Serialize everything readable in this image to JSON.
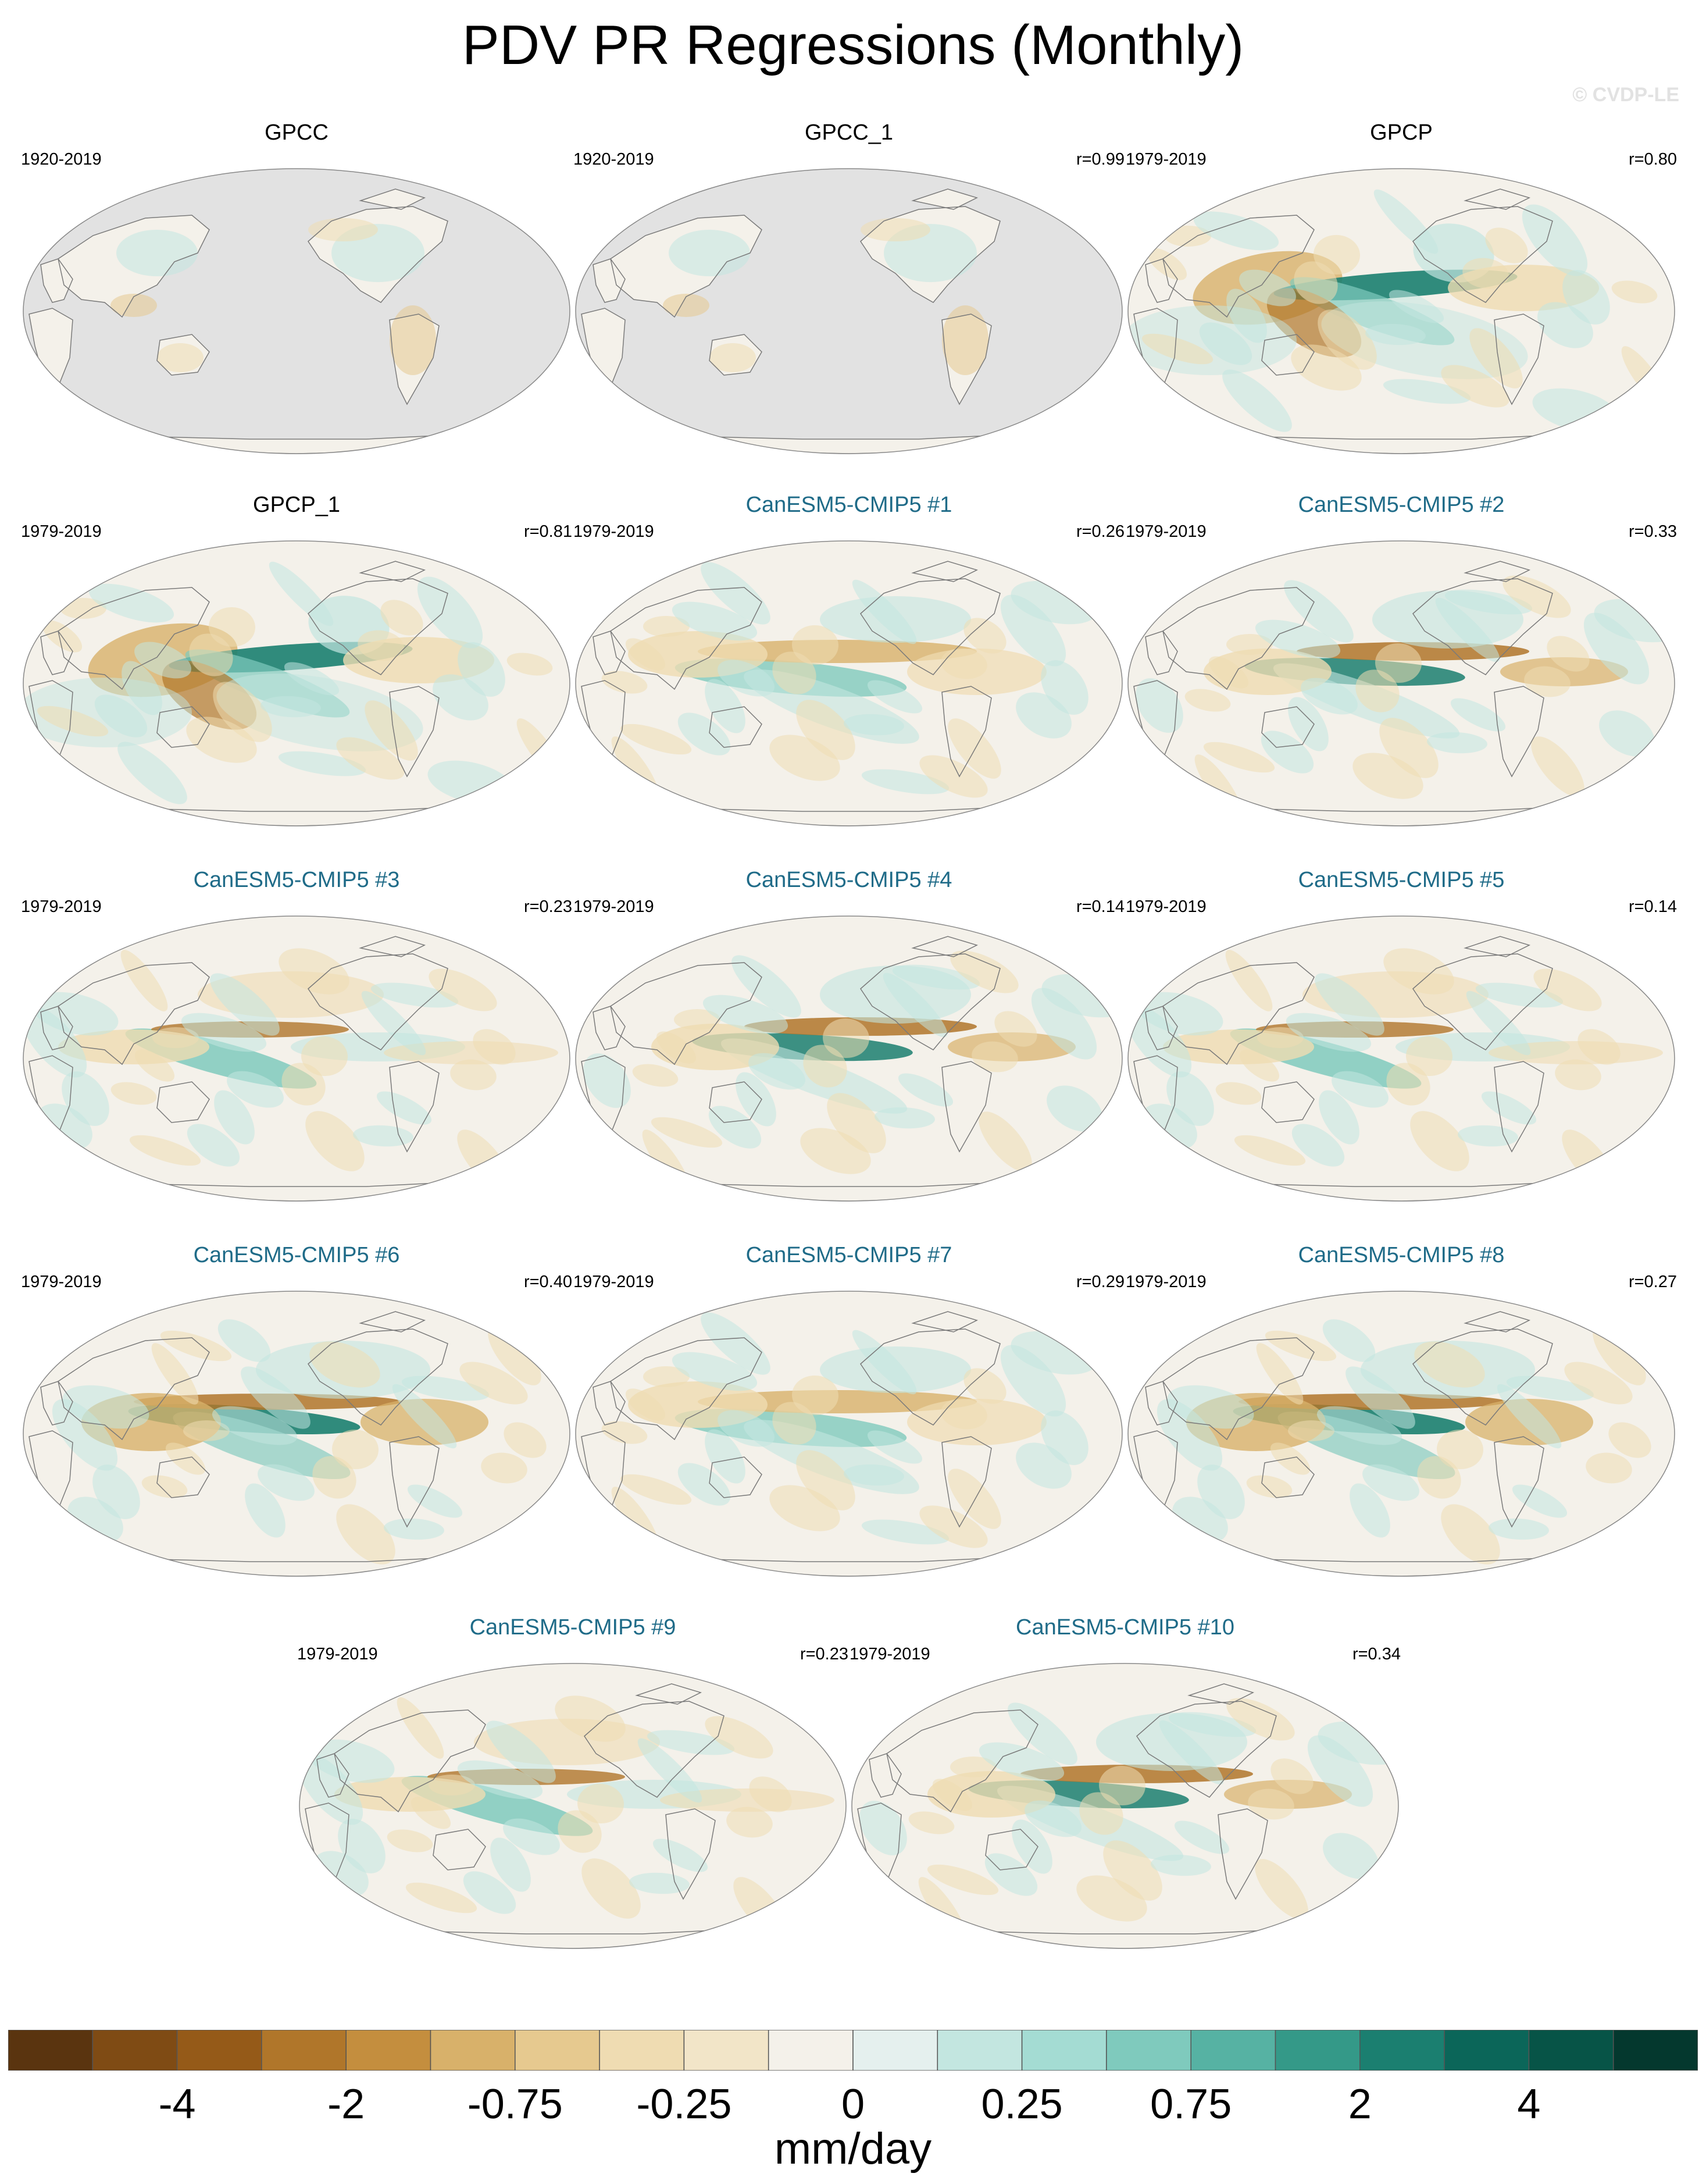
{
  "title": "PDV PR Regressions (Monthly)",
  "credit": "© CVDP-LE",
  "colors": {
    "ocean_base": "#f4f1ea",
    "land_nodata": "#e2e2e2",
    "coast": "#7a7a7a",
    "model_title": "#1f6b88"
  },
  "panels": [
    {
      "title": "GPCC",
      "period": "1920-2019",
      "r": "",
      "kind": "obs",
      "land_only": true,
      "pattern": 0
    },
    {
      "title": "GPCC_1",
      "period": "1920-2019",
      "r": "r=0.99",
      "kind": "obs",
      "land_only": true,
      "pattern": 0
    },
    {
      "title": "GPCP",
      "period": "1979-2019",
      "r": "r=0.80",
      "kind": "obs",
      "land_only": false,
      "pattern": 1
    },
    {
      "title": "GPCP_1",
      "period": "1979-2019",
      "r": "r=0.81",
      "kind": "obs",
      "land_only": false,
      "pattern": 1
    },
    {
      "title": "CanESM5-CMIP5 #1",
      "period": "1979-2019",
      "r": "r=0.26",
      "kind": "model",
      "land_only": false,
      "pattern": 2
    },
    {
      "title": "CanESM5-CMIP5 #2",
      "period": "1979-2019",
      "r": "r=0.33",
      "kind": "model",
      "land_only": false,
      "pattern": 3
    },
    {
      "title": "CanESM5-CMIP5 #3",
      "period": "1979-2019",
      "r": "r=0.23",
      "kind": "model",
      "land_only": false,
      "pattern": 4
    },
    {
      "title": "CanESM5-CMIP5 #4",
      "period": "1979-2019",
      "r": "r=0.14",
      "kind": "model",
      "land_only": false,
      "pattern": 3
    },
    {
      "title": "CanESM5-CMIP5 #5",
      "period": "1979-2019",
      "r": "r=0.14",
      "kind": "model",
      "land_only": false,
      "pattern": 4
    },
    {
      "title": "CanESM5-CMIP5 #6",
      "period": "1979-2019",
      "r": "r=0.40",
      "kind": "model",
      "land_only": false,
      "pattern": 5
    },
    {
      "title": "CanESM5-CMIP5 #7",
      "period": "1979-2019",
      "r": "r=0.29",
      "kind": "model",
      "land_only": false,
      "pattern": 2
    },
    {
      "title": "CanESM5-CMIP5 #8",
      "period": "1979-2019",
      "r": "r=0.27",
      "kind": "model",
      "land_only": false,
      "pattern": 5
    },
    {
      "title": "CanESM5-CMIP5 #9",
      "period": "1979-2019",
      "r": "r=0.23",
      "kind": "model",
      "land_only": false,
      "pattern": 4
    },
    {
      "title": "CanESM5-CMIP5 #10",
      "period": "1979-2019",
      "r": "r=0.34",
      "kind": "model",
      "land_only": false,
      "pattern": 3
    }
  ],
  "colorbar": {
    "colors": [
      "#5a340f",
      "#7f4b14",
      "#955a18",
      "#b0762a",
      "#c48e3e",
      "#d8b16a",
      "#e6c98f",
      "#efdcb2",
      "#f2e5c8",
      "#f4f1ea",
      "#e5f0ee",
      "#c3e6e0",
      "#a4dcd3",
      "#7fcabd",
      "#56b2a3",
      "#349988",
      "#1b7f70",
      "#0b6659",
      "#075447",
      "#04382e"
    ],
    "labels": [
      "-4",
      "-2",
      "-0.75",
      "-0.25",
      "0",
      "0.25",
      "0.75",
      "2",
      "4"
    ],
    "units": "mm/day"
  }
}
